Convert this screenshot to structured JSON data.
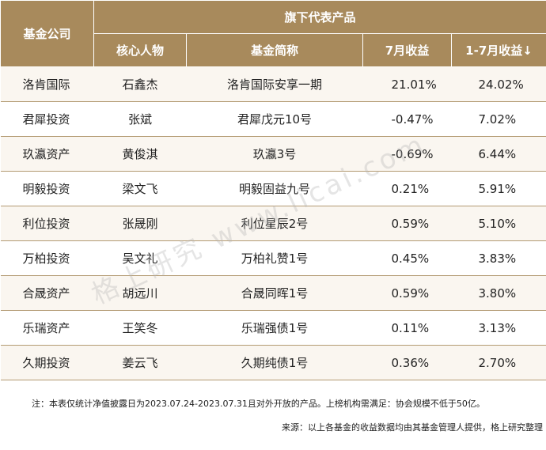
{
  "table": {
    "header": {
      "company": "基金公司",
      "group": "旗下代表产品",
      "columns": [
        "核心人物",
        "基金简称",
        "7月收益",
        "1-7月收益↓"
      ]
    },
    "rows": [
      [
        "洛肯国际",
        "石鑫杰",
        "洛肯国际安享一期",
        "21.01%",
        "24.02%"
      ],
      [
        "君犀投资",
        "张斌",
        "君犀戊元10号",
        "-0.47%",
        "7.02%"
      ],
      [
        "玖瀛资产",
        "黄俊淇",
        "玖瀛3号",
        "-0.69%",
        "6.44%"
      ],
      [
        "明毅投资",
        "梁文飞",
        "明毅固益九号",
        "0.21%",
        "5.91%"
      ],
      [
        "利位投资",
        "张晟刚",
        "利位星辰2号",
        "0.59%",
        "5.10%"
      ],
      [
        "万柏投资",
        "吴文礼",
        "万柏礼赞1号",
        "0.45%",
        "3.83%"
      ],
      [
        "合晟资产",
        "胡远川",
        "合晟同晖1号",
        "0.59%",
        "3.80%"
      ],
      [
        "乐瑞资产",
        "王笑冬",
        "乐瑞强债1号",
        "0.11%",
        "3.13%"
      ],
      [
        "久期投资",
        "姜云飞",
        "久期纯债1号",
        "0.36%",
        "2.70%"
      ]
    ]
  },
  "watermark": "格上研究 www.licai.com",
  "note": "注：本表仅统计净值披露日为2023.07.24-2023.07.31且对外开放的产品。上榜机构需满足：协会规模不低于50亿。",
  "source": "来源：以上各基金的收益数据均由其基金管理人提供，格上研究整理"
}
